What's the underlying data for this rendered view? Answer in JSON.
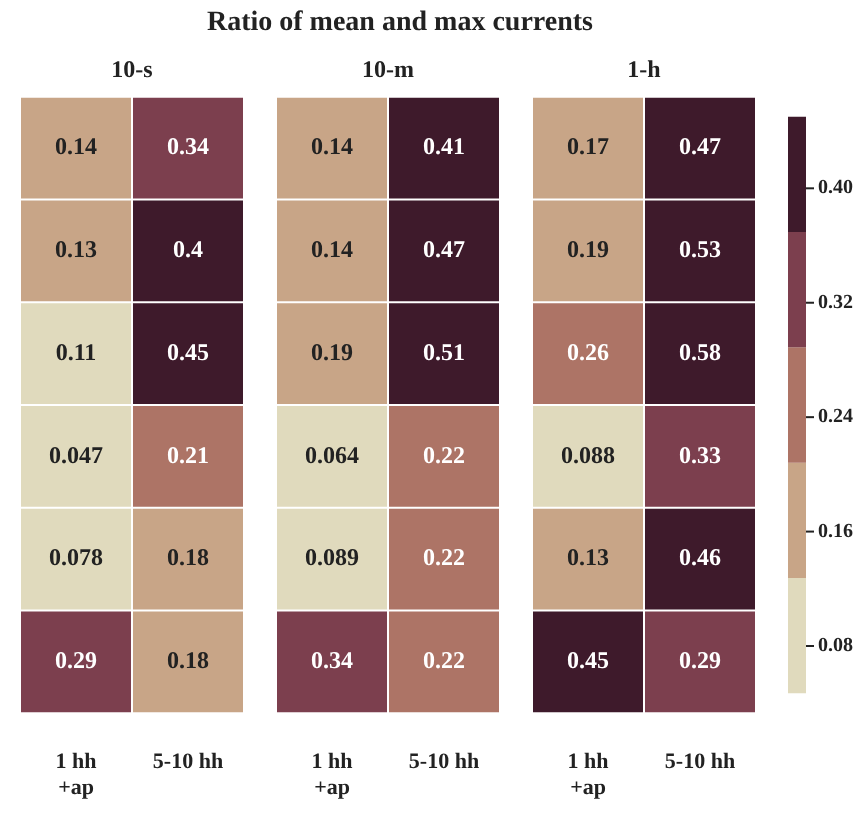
{
  "chart_data": [
    {
      "type": "heatmap",
      "title": "10-s",
      "annotations": [
        "Ratio of mean and max currents"
      ],
      "categories": [
        "1 hh\n+ap",
        "5-10 hh"
      ],
      "y_categories": [
        null,
        null,
        null,
        null,
        null,
        null
      ],
      "tick_labels": "x",
      "data_labels": true,
      "cells": [
        [
          0.14,
          0.34
        ],
        [
          0.13,
          0.4
        ],
        [
          0.11,
          0.45
        ],
        [
          0.047,
          0.21
        ],
        [
          0.078,
          0.18
        ],
        [
          0.29,
          0.18
        ]
      ]
    },
    {
      "type": "heatmap",
      "title": "10-m",
      "categories": [
        "1 hh\n+ap",
        "5-10 hh"
      ],
      "y_categories": [
        null,
        null,
        null,
        null,
        null,
        null
      ],
      "tick_labels": "x",
      "data_labels": true,
      "cells": [
        [
          0.14,
          0.41
        ],
        [
          0.14,
          0.47
        ],
        [
          0.19,
          0.51
        ],
        [
          0.064,
          0.22
        ],
        [
          0.089,
          0.22
        ],
        [
          0.34,
          0.22
        ]
      ]
    },
    {
      "type": "heatmap",
      "title": "1-h",
      "categories": [
        "1 hh\n+ap",
        "5-10 hh"
      ],
      "y_categories": [
        null,
        null,
        null,
        null,
        null,
        null
      ],
      "tick_labels": "x",
      "data_labels": true,
      "clim": [
        0.047,
        0.45
      ],
      "cticks": [
        0.08,
        0.16,
        0.24,
        0.32,
        {
          "value": 0.4,
          "label": "0.40"
        }
      ],
      "colors": [
        "#e0dabd",
        "#c8a587",
        "#ad7466",
        "#7c3f4e",
        "#3e1a2b"
      ],
      "cells": [
        [
          0.17,
          0.47
        ],
        [
          0.19,
          0.53
        ],
        [
          0.26,
          0.58
        ],
        [
          0.088,
          0.33
        ],
        [
          0.13,
          0.46
        ],
        [
          0.45,
          0.29
        ]
      ]
    }
  ]
}
